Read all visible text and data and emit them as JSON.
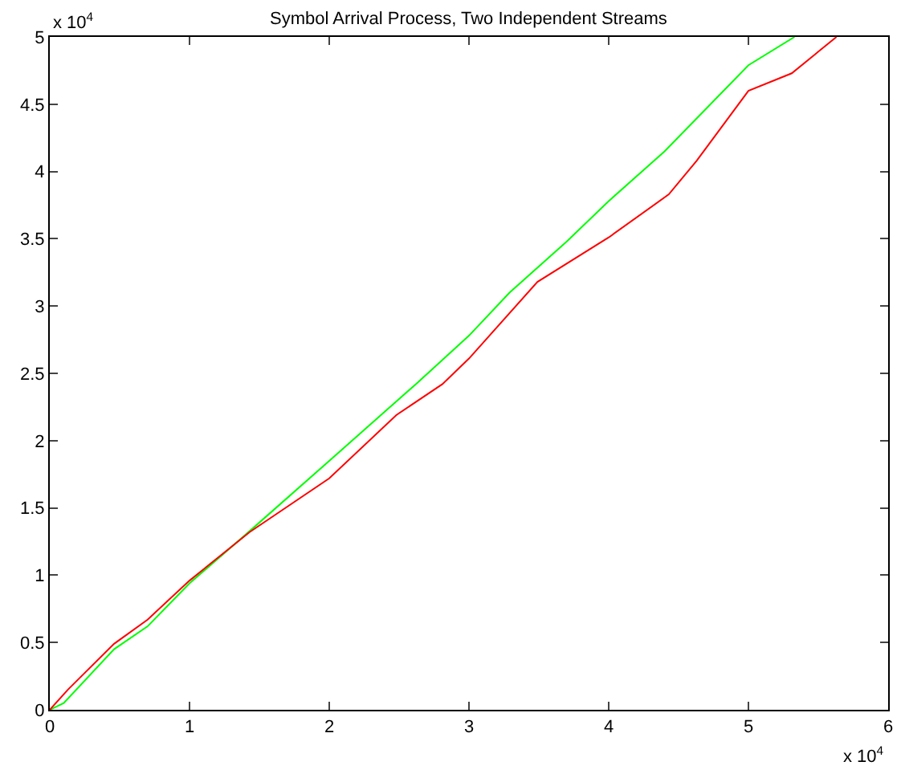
{
  "chart_data": {
    "type": "line",
    "title": "Symbol Arrival Process, Two Independent Streams",
    "annotations": [
      "x 10$^{4}$",
      "x 10$^{4}$"
    ],
    "series": [
      {
        "color": "#00ff00",
        "x": [
          0,
          0.1,
          0.46,
          0.7,
          1.0,
          1.4,
          2.0,
          2.62,
          3.0,
          3.29,
          3.7,
          4.0,
          4.4,
          5.0,
          5.33
        ],
        "values": [
          0,
          0.05,
          0.45,
          0.62,
          0.94,
          1.3,
          1.85,
          2.42,
          2.78,
          3.1,
          3.48,
          3.78,
          4.15,
          4.79,
          5.0
        ]
      },
      {
        "color": "#ff0000",
        "x": [
          0,
          0.13,
          0.46,
          0.7,
          1.0,
          1.43,
          2.0,
          2.48,
          2.81,
          3.0,
          3.49,
          4.0,
          4.43,
          4.63,
          5.0,
          5.31,
          5.63
        ],
        "values": [
          0,
          0.15,
          0.49,
          0.67,
          0.96,
          1.32,
          1.72,
          2.19,
          2.42,
          2.61,
          3.18,
          3.51,
          3.83,
          4.08,
          4.6,
          4.73,
          5.0
        ]
      }
    ],
    "xlim": [
      0,
      6
    ],
    "ylim": [
      0,
      5
    ],
    "xticks": [
      0,
      1,
      2,
      3,
      4,
      5,
      6
    ],
    "yticks": [
      0,
      0.5,
      1,
      1.5,
      2,
      2.5,
      3,
      3.5,
      4,
      4.5,
      5
    ],
    "grid": false
  }
}
